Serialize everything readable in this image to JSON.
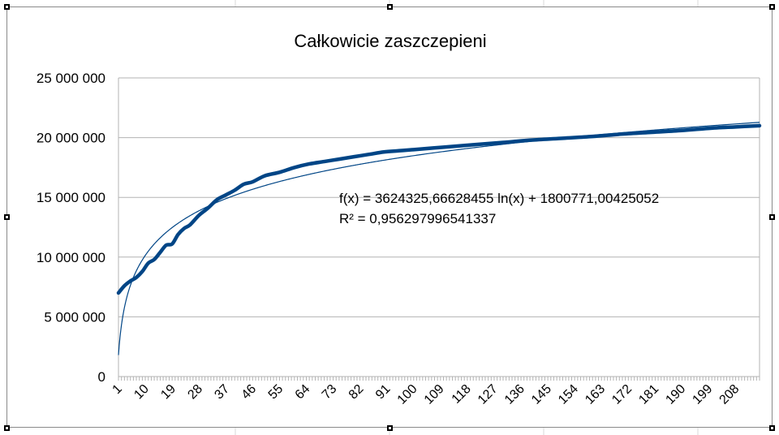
{
  "chart_data": {
    "type": "line",
    "title": "Całkowicie zaszczepieni",
    "xlabel": "",
    "ylabel": "",
    "ylim": [
      0,
      25000000
    ],
    "yticks": [
      0,
      5000000,
      10000000,
      15000000,
      20000000,
      25000000
    ],
    "ytick_labels": [
      "0",
      "5 000 000",
      "10 000 000",
      "15 000 000",
      "20 000 000",
      "25 000 000"
    ],
    "x_range": [
      1,
      216
    ],
    "xtick_labels": [
      "1",
      "10",
      "19",
      "28",
      "37",
      "46",
      "55",
      "64",
      "73",
      "82",
      "91",
      "100",
      "109",
      "118",
      "127",
      "136",
      "145",
      "154",
      "163",
      "172",
      "181",
      "190",
      "199",
      "208"
    ],
    "grid": true,
    "legend": "none",
    "series": [
      {
        "x": [
          1,
          3,
          5,
          7,
          9,
          11,
          13,
          15,
          17,
          19,
          21,
          23,
          25,
          28,
          31,
          34,
          37,
          40,
          43,
          46,
          50,
          55,
          60,
          65,
          70,
          75,
          80,
          85,
          90,
          95,
          100,
          110,
          120,
          130,
          140,
          150,
          160,
          170,
          180,
          190,
          200,
          208,
          216
        ],
        "values": [
          7000000,
          7600000,
          8000000,
          8300000,
          8800000,
          9500000,
          9800000,
          10400000,
          11000000,
          11100000,
          11900000,
          12400000,
          12700000,
          13500000,
          14100000,
          14800000,
          15200000,
          15600000,
          16100000,
          16300000,
          16800000,
          17100000,
          17500000,
          17800000,
          18000000,
          18200000,
          18400000,
          18600000,
          18800000,
          18900000,
          19000000,
          19200000,
          19400000,
          19600000,
          19800000,
          19950000,
          20100000,
          20300000,
          20450000,
          20600000,
          20800000,
          20900000,
          21000000
        ],
        "color": "#004586"
      }
    ],
    "trendline": {
      "type": "logarithmic",
      "a": 3624325.66628455,
      "b": 1800771.00425052,
      "color": "#004586",
      "equation": "f(x) = 3624325,66628455 ln(x) + 1800771,00425052",
      "r2": "R² = 0,956297996541337"
    }
  }
}
